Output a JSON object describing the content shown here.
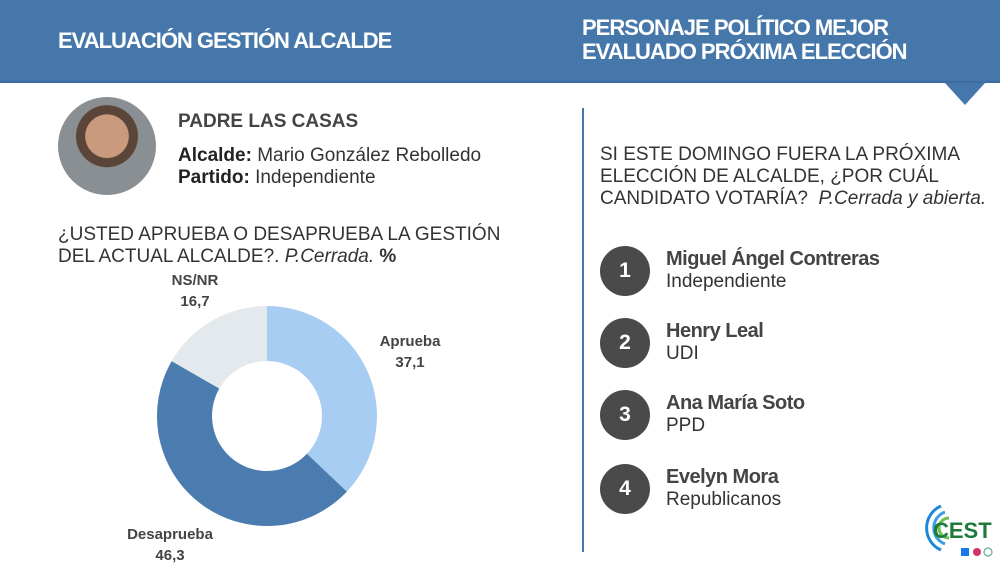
{
  "header": {
    "left_title": "EVALUACIÓN GESTIÓN ALCALDE",
    "right_title_line1": "PERSONAJE POLÍTICO MEJOR",
    "right_title_line2": "EVALUADO PRÓXIMA ELECCIÓN",
    "color": "#4677ab"
  },
  "mayor": {
    "comuna": "PADRE LAS CASAS",
    "alcalde_label": "Alcalde:",
    "alcalde": "Mario González Rebolledo",
    "partido_label": "Partido:",
    "partido": "Independiente"
  },
  "question1": {
    "text": "¿USTED APRUEBA O DESAPRUEBA LA GESTIÓN DEL ACTUAL ALCALDE?.",
    "note": "P.Cerrada.",
    "unit": "%"
  },
  "chart_data": {
    "type": "pie",
    "donut": true,
    "categories": [
      "Aprueba",
      "Desaprueba",
      "NS/NR"
    ],
    "values": [
      37.1,
      46.3,
      16.7
    ],
    "labels": [
      "37,1",
      "46,3",
      "16,7"
    ],
    "colors": [
      "#a8cdf3",
      "#4a7cb0",
      "#e3e9ec"
    ]
  },
  "question2": {
    "text": "SI ESTE DOMINGO FUERA LA PRÓXIMA ELECCIÓN DE ALCALDE, ¿POR CUÁL CANDIDATO VOTARÍA?",
    "note": "P.Cerrada y abierta."
  },
  "candidates": [
    {
      "rank": "1",
      "name": "Miguel Ángel Contreras",
      "party": "Independiente"
    },
    {
      "rank": "2",
      "name": "Henry Leal",
      "party": "UDI"
    },
    {
      "rank": "3",
      "name": "Ana María Soto",
      "party": "PPD"
    },
    {
      "rank": "4",
      "name": "Evelyn Mora",
      "party": "Republicanos"
    }
  ],
  "logo": {
    "text": "CEST"
  }
}
